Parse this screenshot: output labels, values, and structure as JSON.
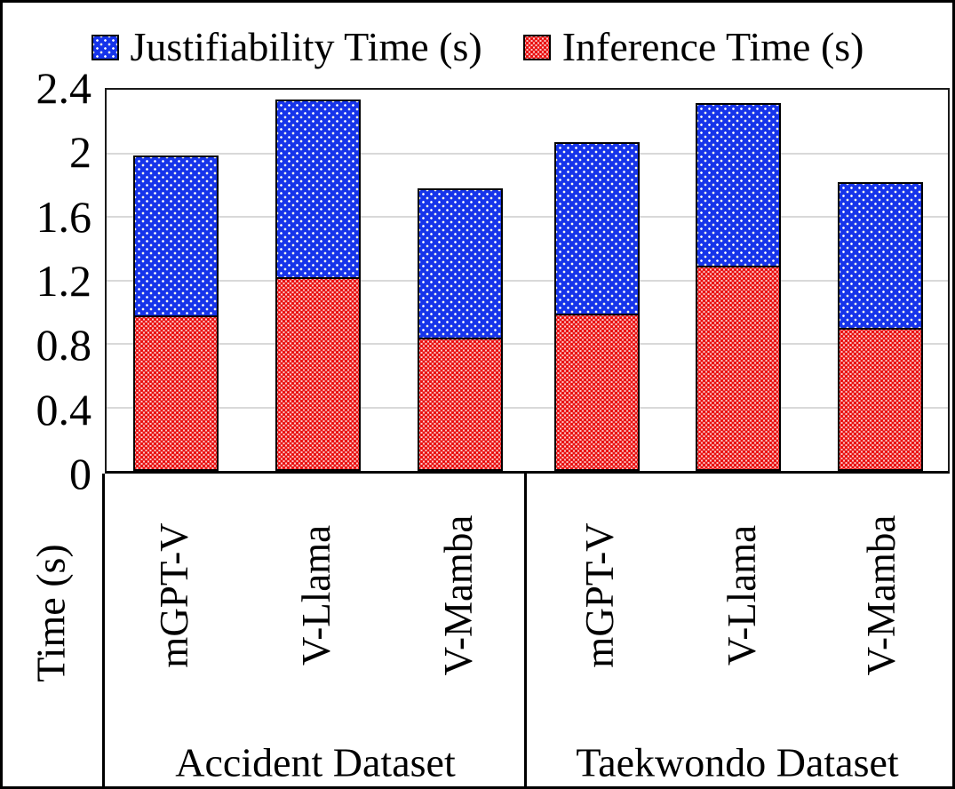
{
  "chart_data": {
    "type": "bar",
    "stacked": true,
    "ylabel": "Time (s)",
    "ylim": [
      0,
      2.4
    ],
    "yticks": [
      0,
      0.4,
      0.8,
      1.2,
      1.6,
      2,
      2.4
    ],
    "ytick_labels": [
      "0",
      "0.4",
      "0.8",
      "1.2",
      "1.6",
      "2",
      "2.4"
    ],
    "grid": true,
    "legend_position": "top",
    "legend": [
      {
        "name": "Justifiability Time (s)",
        "color": "#1634EA",
        "pattern": "blue-white-dots"
      },
      {
        "name": "Inference Time (s)",
        "color": "#E90E0E",
        "pattern": "red-white-balls"
      }
    ],
    "groups": [
      {
        "label": "Accident Dataset",
        "categories": [
          "mGPT-V",
          "V-Llama",
          "V-Mamba"
        ],
        "series": [
          {
            "name": "Inference Time (s)",
            "values": [
              0.98,
              1.22,
              0.84
            ]
          },
          {
            "name": "Justifiability Time (s)",
            "values": [
              1.02,
              1.13,
              0.95
            ]
          }
        ],
        "totals": [
          2.0,
          2.35,
          1.79
        ]
      },
      {
        "label": "Taekwondo Dataset",
        "categories": [
          "mGPT-V",
          "V-Llama",
          "V-Mamba"
        ],
        "series": [
          {
            "name": "Inference Time (s)",
            "values": [
              0.99,
              1.29,
              0.9
            ]
          },
          {
            "name": "Justifiability Time (s)",
            "values": [
              1.09,
              1.04,
              0.93
            ]
          }
        ],
        "totals": [
          2.08,
          2.33,
          1.83
        ]
      }
    ]
  }
}
